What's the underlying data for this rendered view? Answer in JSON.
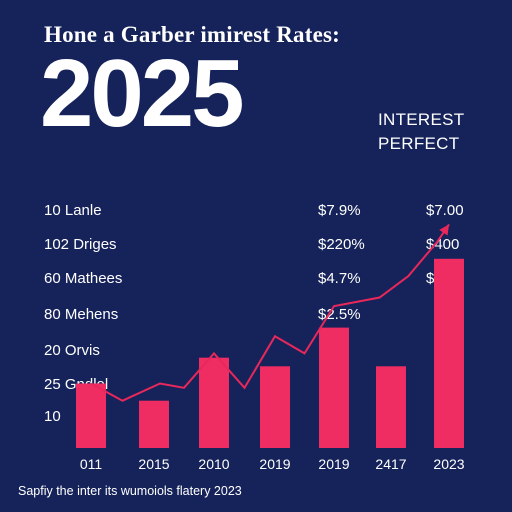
{
  "header": {
    "headline": "Hone a Garber imirest Rates:",
    "year": "2025",
    "tag_line1": "INTEREST",
    "tag_line2": "PERFECT"
  },
  "left_labels": [
    "10 Lanle",
    "102 Driges",
    "60 Mathees",
    "80 Mehens",
    "20 Orvis",
    "25 Gndlel",
    "10"
  ],
  "pct_labels": [
    "$7.9%",
    "$220%",
    "$4.7%",
    "$2.5%"
  ],
  "usd_labels": [
    "$7.00",
    "$400",
    "$300"
  ],
  "footnote": "Sapfiy the inter its wumoiols flatery 2023",
  "colors": {
    "background": "#16235a",
    "bar": "#ef2d63",
    "line": "#e8285a",
    "text": "#ffffff"
  },
  "chart_data": {
    "type": "bar",
    "title": "2025",
    "categories": [
      "011",
      "2015",
      "2010",
      "2019",
      "2019",
      "2417",
      "2023"
    ],
    "series": [
      {
        "type": "bar",
        "values": [
          15,
          11,
          21,
          19,
          28,
          19,
          44
        ]
      }
    ],
    "line": {
      "type": "line",
      "points": [
        [
          0.0,
          15
        ],
        [
          0.5,
          11
        ],
        [
          1.1,
          15
        ],
        [
          1.5,
          14
        ],
        [
          2.0,
          22
        ],
        [
          2.5,
          14
        ],
        [
          3.0,
          26
        ],
        [
          3.5,
          22
        ],
        [
          4.0,
          33
        ],
        [
          4.8,
          35
        ],
        [
          5.3,
          40
        ],
        [
          5.8,
          48
        ],
        [
          6.0,
          52
        ]
      ],
      "arrowhead": true
    },
    "ylim": [
      0,
      60
    ],
    "grid": false,
    "legend": "none"
  }
}
